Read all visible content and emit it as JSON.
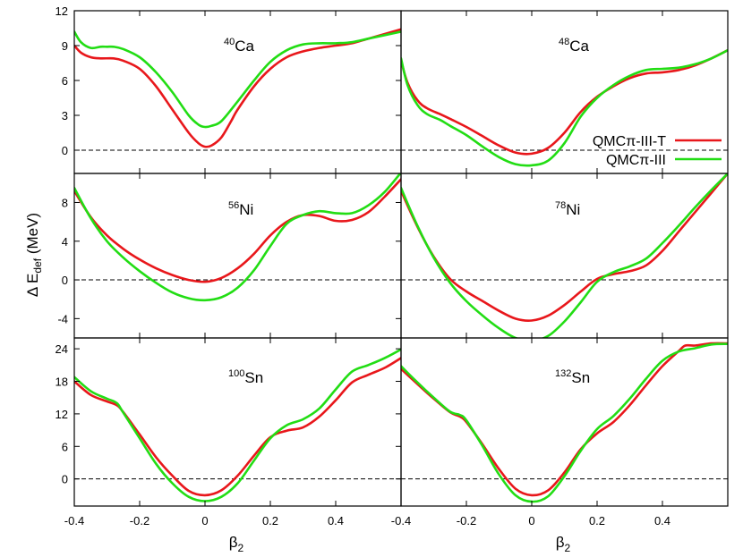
{
  "chart_data": {
    "type": "line",
    "grid": "2x3 panels",
    "xlabel": "β",
    "xlabel_sub": "2",
    "ylabel": "Δ E",
    "ylabel_sub": "def",
    "ylabel_unit": " (MeV)",
    "legend_position": "top-right",
    "zero_line": "dashed",
    "series": [
      {
        "name": "QMCπ-III-T",
        "color": "#e8171b"
      },
      {
        "name": "QMCπ-III",
        "color": "#22dd14"
      }
    ],
    "panels": [
      {
        "mass": "40",
        "element": "Ca",
        "xlim": [
          -0.4,
          0.6
        ],
        "ylim": [
          -2,
          12
        ],
        "yticks": [
          0,
          3,
          6,
          9,
          12
        ],
        "ytick_labels": [
          "0",
          "3",
          "6",
          "9",
          "12"
        ],
        "curves": [
          {
            "x": [
              -0.4,
              -0.38,
              -0.35,
              -0.32,
              -0.28,
              -0.25,
              -0.2,
              -0.15,
              -0.1,
              -0.05,
              -0.02,
              0,
              0.02,
              0.05,
              0.08,
              0.1,
              0.15,
              0.2,
              0.25,
              0.3,
              0.35,
              0.4,
              0.45,
              0.5,
              0.55,
              0.6
            ],
            "y": [
              9.0,
              8.4,
              8.0,
              7.9,
              7.9,
              7.7,
              7.0,
              5.5,
              3.5,
              1.5,
              0.6,
              0.3,
              0.4,
              1.1,
              2.5,
              3.5,
              5.5,
              7.0,
              8.0,
              8.5,
              8.8,
              9.0,
              9.2,
              9.6,
              10.0,
              10.4
            ]
          },
          {
            "x": [
              -0.4,
              -0.38,
              -0.35,
              -0.32,
              -0.3,
              -0.28,
              -0.25,
              -0.2,
              -0.15,
              -0.1,
              -0.05,
              -0.02,
              0,
              0.02,
              0.05,
              0.1,
              0.15,
              0.2,
              0.25,
              0.3,
              0.35,
              0.4,
              0.45,
              0.5,
              0.55,
              0.6
            ],
            "y": [
              10.2,
              9.3,
              8.8,
              8.9,
              8.9,
              8.9,
              8.7,
              8.0,
              6.7,
              5.0,
              3.0,
              2.2,
              2.0,
              2.1,
              2.5,
              4.2,
              6.0,
              7.6,
              8.6,
              9.1,
              9.2,
              9.2,
              9.3,
              9.6,
              9.9,
              10.2
            ]
          }
        ]
      },
      {
        "mass": "48",
        "element": "Ca",
        "xlim": [
          -0.4,
          0.6
        ],
        "ylim": [
          -2,
          12
        ],
        "yticks": [],
        "ytick_labels": [],
        "curves": [
          {
            "x": [
              -0.4,
              -0.38,
              -0.35,
              -0.32,
              -0.28,
              -0.25,
              -0.2,
              -0.15,
              -0.1,
              -0.05,
              0,
              0.05,
              0.1,
              0.15,
              0.2,
              0.25,
              0.3,
              0.35,
              0.4,
              0.45,
              0.5,
              0.55,
              0.6
            ],
            "y": [
              7.7,
              5.8,
              4.3,
              3.6,
              3.1,
              2.7,
              2.0,
              1.2,
              0.4,
              -0.2,
              -0.3,
              0.2,
              1.5,
              3.3,
              4.6,
              5.5,
              6.2,
              6.6,
              6.7,
              6.9,
              7.3,
              7.9,
              8.6
            ]
          },
          {
            "x": [
              -0.4,
              -0.38,
              -0.35,
              -0.32,
              -0.28,
              -0.25,
              -0.2,
              -0.15,
              -0.1,
              -0.05,
              0,
              0.05,
              0.1,
              0.15,
              0.2,
              0.25,
              0.3,
              0.35,
              0.4,
              0.45,
              0.5,
              0.55,
              0.6
            ],
            "y": [
              7.9,
              5.6,
              3.9,
              3.1,
              2.6,
              2.1,
              1.3,
              0.3,
              -0.6,
              -1.2,
              -1.3,
              -0.9,
              0.6,
              2.9,
              4.5,
              5.6,
              6.4,
              6.9,
              7.0,
              7.1,
              7.4,
              7.9,
              8.6
            ]
          }
        ]
      },
      {
        "mass": "56",
        "element": "Ni",
        "xlim": [
          -0.4,
          0.6
        ],
        "ylim": [
          -6,
          11
        ],
        "yticks": [
          -4,
          0,
          4,
          8
        ],
        "ytick_labels": [
          "-4",
          "0",
          "4",
          "8"
        ],
        "curves": [
          {
            "x": [
              -0.4,
              -0.35,
              -0.3,
              -0.25,
              -0.2,
              -0.15,
              -0.1,
              -0.05,
              0,
              0.05,
              0.1,
              0.15,
              0.2,
              0.25,
              0.3,
              0.35,
              0.4,
              0.45,
              0.5,
              0.55,
              0.6
            ],
            "y": [
              9.2,
              6.5,
              4.6,
              3.2,
              2.1,
              1.2,
              0.5,
              0.0,
              -0.2,
              0.2,
              1.2,
              2.7,
              4.6,
              6.0,
              6.7,
              6.6,
              6.1,
              6.2,
              7.0,
              8.6,
              10.4
            ]
          },
          {
            "x": [
              -0.4,
              -0.35,
              -0.3,
              -0.25,
              -0.2,
              -0.15,
              -0.1,
              -0.05,
              0,
              0.05,
              0.1,
              0.15,
              0.2,
              0.25,
              0.3,
              0.35,
              0.4,
              0.45,
              0.5,
              0.55,
              0.6
            ],
            "y": [
              9.5,
              6.4,
              4.0,
              2.3,
              0.9,
              -0.3,
              -1.3,
              -1.9,
              -2.1,
              -1.8,
              -0.8,
              1.0,
              3.5,
              5.8,
              6.7,
              7.1,
              6.9,
              6.9,
              7.7,
              9.1,
              11.1
            ]
          }
        ]
      },
      {
        "mass": "78",
        "element": "Ni",
        "xlim": [
          -0.4,
          0.6
        ],
        "ylim": [
          -6,
          11
        ],
        "yticks": [],
        "ytick_labels": [],
        "curves": [
          {
            "x": [
              -0.4,
              -0.35,
              -0.3,
              -0.25,
              -0.2,
              -0.15,
              -0.1,
              -0.05,
              0,
              0.05,
              0.1,
              0.15,
              0.2,
              0.25,
              0.3,
              0.35,
              0.4,
              0.45,
              0.5,
              0.55,
              0.6
            ],
            "y": [
              9.2,
              5.5,
              2.4,
              0.1,
              -1.2,
              -2.2,
              -3.2,
              -4.0,
              -4.2,
              -3.7,
              -2.6,
              -1.2,
              0.1,
              0.6,
              0.9,
              1.5,
              3.0,
              5.0,
              7.0,
              9.0,
              11.0
            ]
          },
          {
            "x": [
              -0.4,
              -0.35,
              -0.3,
              -0.25,
              -0.2,
              -0.15,
              -0.1,
              -0.05,
              0,
              0.05,
              0.1,
              0.15,
              0.2,
              0.25,
              0.3,
              0.35,
              0.4,
              0.45,
              0.5,
              0.55,
              0.6
            ],
            "y": [
              9.5,
              5.6,
              2.3,
              -0.3,
              -2.2,
              -3.7,
              -5.0,
              -6.0,
              -6.3,
              -5.8,
              -4.3,
              -2.3,
              -0.2,
              0.8,
              1.4,
              2.2,
              3.8,
              5.6,
              7.5,
              9.3,
              11.0
            ]
          }
        ]
      },
      {
        "mass": "100",
        "element": "Sn",
        "xlim": [
          -0.4,
          0.6
        ],
        "ylim": [
          -5,
          26
        ],
        "yticks": [
          0,
          6,
          12,
          18,
          24
        ],
        "ytick_labels": [
          "0",
          "6",
          "12",
          "18",
          "24"
        ],
        "curves": [
          {
            "x": [
              -0.4,
              -0.35,
              -0.3,
              -0.27,
              -0.25,
              -0.2,
              -0.15,
              -0.1,
              -0.05,
              0,
              0.05,
              0.1,
              0.15,
              0.2,
              0.25,
              0.3,
              0.35,
              0.4,
              0.45,
              0.5,
              0.55,
              0.6
            ],
            "y": [
              18.0,
              15.5,
              14.3,
              13.6,
              12.3,
              8.2,
              4.0,
              0.6,
              -2.2,
              -3.0,
              -2.1,
              0.6,
              4.3,
              7.7,
              8.9,
              9.5,
              11.5,
              14.5,
              17.8,
              19.2,
              20.5,
              22.3
            ]
          },
          {
            "x": [
              -0.4,
              -0.35,
              -0.3,
              -0.27,
              -0.25,
              -0.2,
              -0.15,
              -0.1,
              -0.05,
              0,
              0.05,
              0.1,
              0.15,
              0.2,
              0.25,
              0.3,
              0.35,
              0.4,
              0.45,
              0.5,
              0.55,
              0.6
            ],
            "y": [
              18.8,
              16.2,
              14.8,
              14.0,
              12.2,
              7.5,
              2.8,
              -0.8,
              -3.3,
              -4.1,
              -3.3,
              -0.8,
              3.4,
              7.5,
              9.9,
              11.0,
              13.0,
              16.5,
              19.8,
              21.0,
              22.3,
              23.9
            ]
          }
        ]
      },
      {
        "mass": "132",
        "element": "Sn",
        "xlim": [
          -0.4,
          0.6
        ],
        "ylim": [
          -5,
          26
        ],
        "yticks": [],
        "ytick_labels": [],
        "curves": [
          {
            "x": [
              -0.4,
              -0.35,
              -0.3,
              -0.25,
              -0.22,
              -0.2,
              -0.15,
              -0.1,
              -0.05,
              0,
              0.05,
              0.1,
              0.15,
              0.2,
              0.25,
              0.3,
              0.35,
              0.4,
              0.45,
              0.47,
              0.5,
              0.55,
              0.6
            ],
            "y": [
              20.3,
              17.5,
              14.8,
              12.3,
              11.5,
              10.5,
              6.3,
              1.8,
              -1.8,
              -3.0,
              -2.1,
              1.2,
              5.5,
              8.4,
              10.5,
              13.6,
              17.3,
              20.8,
              23.6,
              24.6,
              24.6,
              25.0,
              25.0
            ]
          },
          {
            "x": [
              -0.4,
              -0.35,
              -0.3,
              -0.25,
              -0.22,
              -0.2,
              -0.15,
              -0.1,
              -0.05,
              0,
              0.05,
              0.1,
              0.15,
              0.2,
              0.25,
              0.3,
              0.35,
              0.4,
              0.45,
              0.5,
              0.55,
              0.6
            ],
            "y": [
              20.8,
              17.8,
              15.0,
              12.4,
              11.8,
              10.8,
              6.0,
              0.8,
              -3.0,
              -4.2,
              -3.2,
              0.5,
              5.2,
              9.2,
              11.6,
              14.8,
              18.5,
              21.8,
              23.5,
              24.1,
              24.8,
              24.9
            ]
          }
        ]
      }
    ],
    "xticks": [
      -0.4,
      -0.2,
      0,
      0.2,
      0.4
    ],
    "xtick_labels_left": [
      "-0.4",
      "-0.2",
      "0",
      "0.2",
      "0.4"
    ],
    "xtick_labels_right": [
      "-0.4",
      "-0.2",
      "0",
      "0.2",
      "0.4"
    ]
  }
}
